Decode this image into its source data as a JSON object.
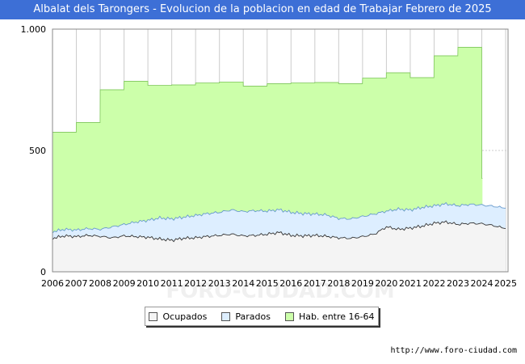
{
  "header": {
    "title": "Albalat dels Tarongers - Evolucion de la poblacion en edad de Trabajar Febrero de 2025"
  },
  "footer": {
    "source": "http://www.foro-ciudad.com"
  },
  "watermark": "FORO-CIUDAD.COM",
  "chart_data": {
    "type": "area",
    "title": "Albalat dels Tarongers - Evolucion de la poblacion en edad de Trabajar Febrero de 2025",
    "xlabel": "",
    "ylabel": "",
    "xlim": [
      2006,
      2025.1
    ],
    "ylim": [
      0,
      1000
    ],
    "y_ticks": [
      0,
      500,
      1000
    ],
    "y_tick_labels": [
      "0",
      "500",
      "1.000"
    ],
    "x_ticks": [
      2006,
      2007,
      2008,
      2009,
      2010,
      2011,
      2012,
      2013,
      2014,
      2015,
      2016,
      2017,
      2018,
      2019,
      2020,
      2021,
      2022,
      2023,
      2024,
      2025
    ],
    "grid": true,
    "legend_position": "bottom-center",
    "series": [
      {
        "name": "Hab. entre 16-64",
        "color": "#ccffaa",
        "line_color": "#88cc66",
        "step": true,
        "x": [
          2006,
          2007,
          2008,
          2009,
          2010,
          2011,
          2012,
          2013,
          2014,
          2015,
          2016,
          2017,
          2018,
          2019,
          2020,
          2021,
          2022,
          2023,
          2024
        ],
        "values": [
          575,
          615,
          750,
          785,
          768,
          770,
          778,
          782,
          765,
          775,
          778,
          780,
          775,
          798,
          820,
          800,
          890,
          925,
          385
        ]
      },
      {
        "name": "Parados",
        "color": "#ddeeff",
        "line_color": "#6699cc",
        "x": [
          2006,
          2006.5,
          2007,
          2007.5,
          2008,
          2008.5,
          2009,
          2009.5,
          2010,
          2010.5,
          2011,
          2011.5,
          2012,
          2012.5,
          2013,
          2013.5,
          2014,
          2014.5,
          2015,
          2015.5,
          2016,
          2016.5,
          2017,
          2017.5,
          2018,
          2018.5,
          2019,
          2019.5,
          2020,
          2020.5,
          2021,
          2021.5,
          2022,
          2022.5,
          2023,
          2023.5,
          2024,
          2024.5,
          2025
        ],
        "values": [
          165,
          175,
          172,
          178,
          175,
          185,
          195,
          205,
          212,
          222,
          218,
          225,
          232,
          240,
          245,
          255,
          248,
          252,
          250,
          256,
          245,
          240,
          238,
          234,
          220,
          218,
          228,
          238,
          250,
          258,
          255,
          265,
          272,
          280,
          272,
          278,
          275,
          270,
          262
        ]
      },
      {
        "name": "Ocupados",
        "color": "#f4f4f4",
        "line_color": "#333333",
        "x": [
          2006,
          2006.5,
          2007,
          2007.5,
          2008,
          2008.5,
          2009,
          2009.5,
          2010,
          2010.5,
          2011,
          2011.5,
          2012,
          2012.5,
          2013,
          2013.5,
          2014,
          2014.5,
          2015,
          2015.5,
          2016,
          2016.5,
          2017,
          2017.5,
          2018,
          2018.5,
          2019,
          2019.5,
          2020,
          2020.5,
          2021,
          2021.5,
          2022,
          2022.5,
          2023,
          2023.5,
          2024,
          2024.5,
          2025
        ],
        "values": [
          138,
          148,
          145,
          150,
          146,
          140,
          148,
          145,
          142,
          135,
          130,
          138,
          140,
          146,
          150,
          155,
          148,
          150,
          155,
          162,
          150,
          148,
          150,
          146,
          140,
          138,
          145,
          155,
          185,
          175,
          180,
          188,
          200,
          205,
          195,
          200,
          198,
          190,
          178
        ]
      }
    ]
  }
}
